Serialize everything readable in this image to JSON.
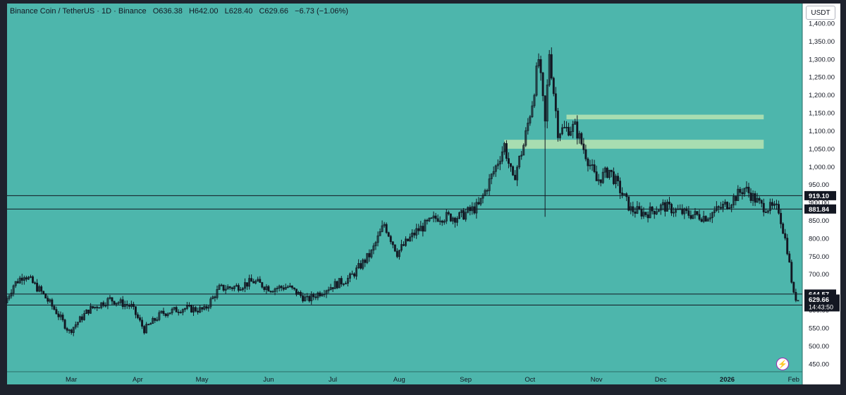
{
  "header": {
    "symbol": "Binance Coin / TetherUS · 1D · Binance",
    "open": "O636.38",
    "high": "H642.00",
    "low": "L628.40",
    "close": "C629.66",
    "change": "−6.73 (−1.06%)"
  },
  "currency_button": "USDT",
  "colors": {
    "background": "#4db6ac",
    "axis_background": "#ffffff",
    "frame": "#1e222d",
    "candle": "#131722",
    "zone": "#b9e4b1",
    "label_background": "#131722",
    "label_text": "#ffffff",
    "flash_accent": "#9c27b0"
  },
  "icons": {
    "flash": "lightning-icon"
  },
  "chart_data": {
    "type": "candlestick",
    "symbol": "Binance Coin / TetherUS",
    "interval": "1D",
    "exchange": "Binance",
    "y_axis": {
      "ticks": [
        450,
        500,
        550,
        600,
        650,
        700,
        750,
        800,
        850,
        900,
        950,
        1000,
        1050,
        1100,
        1150,
        1200,
        1250,
        1300,
        1350,
        1400
      ],
      "tick_labels": [
        "450.00",
        "500.00",
        "550.00",
        "600.00",
        "650.00",
        "700.00",
        "750.00",
        "800.00",
        "850.00",
        "900.00",
        "950.00",
        "1,000.00",
        "1,050.00",
        "1,100.00",
        "1,150.00",
        "1,200.00",
        "1,250.00",
        "1,300.00",
        "1,350.00",
        "1,400.00"
      ],
      "range": [
        428,
        1455
      ]
    },
    "x_axis": {
      "labels": [
        "Mar",
        "Apr",
        "May",
        "Jun",
        "Jul",
        "Aug",
        "Sep",
        "Oct",
        "Nov",
        "Dec",
        "2026",
        "Feb"
      ],
      "start_date": "2025-02-01",
      "end_date": "2026-02-07"
    },
    "horizontal_lines": [
      {
        "value": 919.1,
        "label": "919.10"
      },
      {
        "value": 881.84,
        "label": "881.84"
      },
      {
        "value": 644.57,
        "label": "644.57"
      },
      {
        "value": 613.87,
        "label": "613.87"
      }
    ],
    "current_price": {
      "value": 629.66,
      "label": "629.66",
      "countdown": "14:43:50"
    },
    "zones": [
      {
        "from_date": "2025-10-20",
        "to_date": "2026-01-20",
        "low": 1132,
        "high": 1145
      },
      {
        "from_date": "2025-09-21",
        "to_date": "2026-01-20",
        "low": 1050,
        "high": 1075
      }
    ],
    "price_path": [
      {
        "date": "2025-02-01",
        "close": 620
      },
      {
        "date": "2025-02-05",
        "close": 670
      },
      {
        "date": "2025-02-10",
        "close": 700
      },
      {
        "date": "2025-02-18",
        "close": 650
      },
      {
        "date": "2025-02-25",
        "close": 595
      },
      {
        "date": "2025-03-03",
        "close": 540
      },
      {
        "date": "2025-03-12",
        "close": 600
      },
      {
        "date": "2025-03-22",
        "close": 630
      },
      {
        "date": "2025-04-01",
        "close": 610
      },
      {
        "date": "2025-04-07",
        "close": 545
      },
      {
        "date": "2025-04-15",
        "close": 590
      },
      {
        "date": "2025-04-25",
        "close": 605
      },
      {
        "date": "2025-05-05",
        "close": 600
      },
      {
        "date": "2025-05-12",
        "close": 660
      },
      {
        "date": "2025-05-20",
        "close": 665
      },
      {
        "date": "2025-05-28",
        "close": 680
      },
      {
        "date": "2025-06-05",
        "close": 660
      },
      {
        "date": "2025-06-13",
        "close": 665
      },
      {
        "date": "2025-06-22",
        "close": 628
      },
      {
        "date": "2025-07-01",
        "close": 660
      },
      {
        "date": "2025-07-12",
        "close": 690
      },
      {
        "date": "2025-07-22",
        "close": 760
      },
      {
        "date": "2025-07-28",
        "close": 840
      },
      {
        "date": "2025-08-03",
        "close": 760
      },
      {
        "date": "2025-08-12",
        "close": 820
      },
      {
        "date": "2025-08-22",
        "close": 860
      },
      {
        "date": "2025-09-01",
        "close": 860
      },
      {
        "date": "2025-09-10",
        "close": 890
      },
      {
        "date": "2025-09-18",
        "close": 1000
      },
      {
        "date": "2025-09-22",
        "close": 1060
      },
      {
        "date": "2025-09-26",
        "close": 960
      },
      {
        "date": "2025-10-01",
        "close": 1060
      },
      {
        "date": "2025-10-05",
        "close": 1180
      },
      {
        "date": "2025-10-08",
        "close": 1300
      },
      {
        "date": "2025-10-11",
        "close": 1120
      },
      {
        "date": "2025-10-13",
        "close": 1320
      },
      {
        "date": "2025-10-17",
        "close": 1100
      },
      {
        "date": "2025-10-25",
        "close": 1110
      },
      {
        "date": "2025-10-31",
        "close": 1020
      },
      {
        "date": "2025-11-04",
        "close": 960
      },
      {
        "date": "2025-11-10",
        "close": 990
      },
      {
        "date": "2025-11-20",
        "close": 880
      },
      {
        "date": "2025-11-27",
        "close": 870
      },
      {
        "date": "2025-12-05",
        "close": 890
      },
      {
        "date": "2025-12-15",
        "close": 870
      },
      {
        "date": "2025-12-25",
        "close": 860
      },
      {
        "date": "2026-01-05",
        "close": 900
      },
      {
        "date": "2026-01-12",
        "close": 940
      },
      {
        "date": "2026-01-20",
        "close": 890
      },
      {
        "date": "2026-01-28",
        "close": 880
      },
      {
        "date": "2026-02-01",
        "close": 770
      },
      {
        "date": "2026-02-04",
        "close": 640
      },
      {
        "date": "2026-02-06",
        "close": 629.66
      }
    ]
  }
}
